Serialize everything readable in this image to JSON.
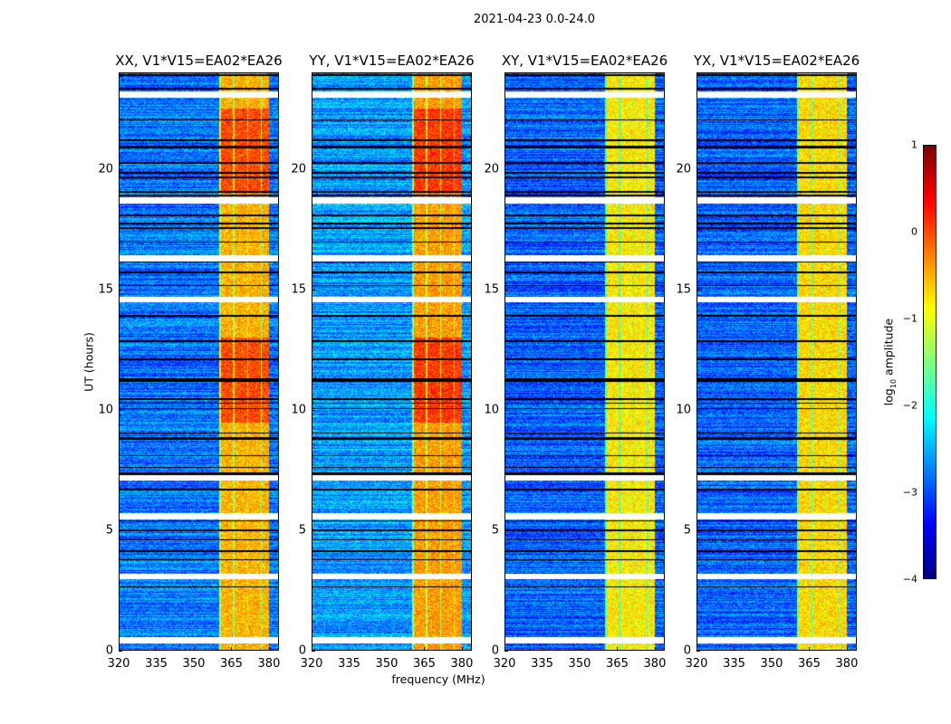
{
  "figure_title": "2021-04-23 0.0-24.0",
  "chart_data": [
    {
      "type": "heatmap",
      "title": "XX, V1*V15=EA02*EA26",
      "xlabel": "frequency (MHz)",
      "ylabel": "UT (hours)",
      "xlim": [
        320,
        384
      ],
      "ylim": [
        0,
        24
      ],
      "xticks": [
        "320",
        "335",
        "350",
        "365",
        "380"
      ],
      "yticks": [
        "0",
        "5",
        "10",
        "15",
        "20"
      ],
      "high_amplitude_band_mhz": [
        360,
        380
      ],
      "background_log10_amplitude": -2.8,
      "band_log10_amplitude": -0.5
    },
    {
      "type": "heatmap",
      "title": "YY, V1*V15=EA02*EA26",
      "xlabel": "frequency (MHz)",
      "ylabel": "",
      "xlim": [
        320,
        384
      ],
      "ylim": [
        0,
        24
      ],
      "xticks": [
        "320",
        "335",
        "350",
        "365",
        "380"
      ],
      "yticks": [
        "0",
        "5",
        "10",
        "15",
        "20"
      ],
      "high_amplitude_band_mhz": [
        360,
        380
      ],
      "background_log10_amplitude": -2.6,
      "band_log10_amplitude": -0.4
    },
    {
      "type": "heatmap",
      "title": "XY, V1*V15=EA02*EA26",
      "xlabel": "",
      "ylabel": "",
      "xlim": [
        320,
        384
      ],
      "ylim": [
        0,
        24
      ],
      "xticks": [
        "320",
        "335",
        "350",
        "365",
        "380"
      ],
      "yticks": [
        "0",
        "5",
        "10",
        "15",
        "20"
      ],
      "high_amplitude_band_mhz": [
        360,
        380
      ],
      "background_log10_amplitude": -2.9,
      "band_log10_amplitude": -0.8
    },
    {
      "type": "heatmap",
      "title": "YX, V1*V15=EA02*EA26",
      "xlabel": "",
      "ylabel": "",
      "xlim": [
        320,
        384
      ],
      "ylim": [
        0,
        24
      ],
      "xticks": [
        "320",
        "335",
        "350",
        "365",
        "380"
      ],
      "yticks": [
        "0",
        "5",
        "10",
        "15",
        "20"
      ],
      "high_amplitude_band_mhz": [
        360,
        380
      ],
      "background_log10_amplitude": -2.9,
      "band_log10_amplitude": -0.7
    }
  ],
  "flagged_gaps_ut": [
    0.45,
    3.1,
    5.6,
    7.2,
    14.6,
    16.3,
    18.7,
    23.1
  ],
  "colorbar": {
    "label_prefix": "log",
    "label_sub": "10",
    "label_suffix": " amplitude",
    "ticks": [
      "1",
      "0",
      "−1",
      "−2",
      "−3",
      "−4"
    ],
    "range": [
      -4,
      1
    ],
    "colormap": "jet"
  },
  "xlabel": "frequency (MHz)",
  "ylabel": "UT (hours)"
}
